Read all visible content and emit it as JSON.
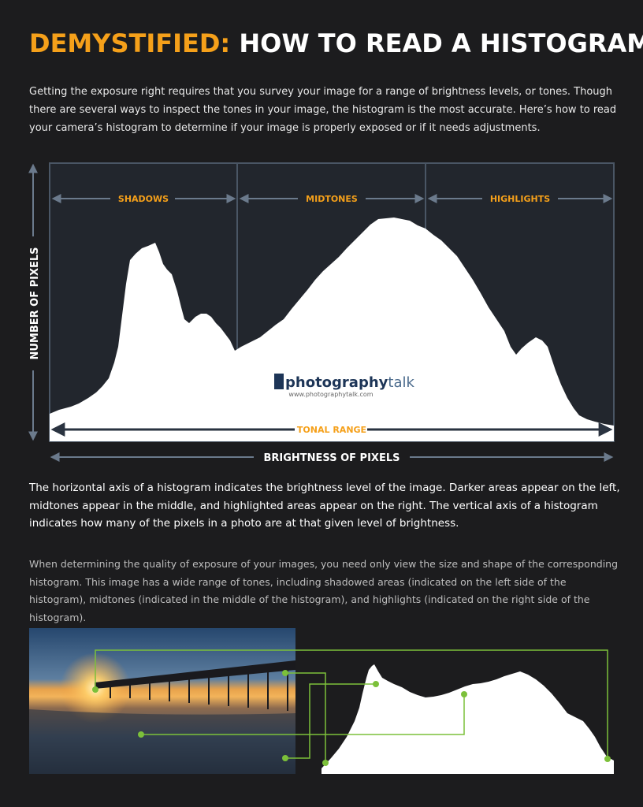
{
  "header": {
    "title_highlight": "DEMYSTIFIED:",
    "title": "HOW TO READ A HISTOGRAM"
  },
  "intro": "Getting the exposure right requires that you survey your image for a range of brightness levels, or tones. Though there are several ways to inspect the tones in your image, the histogram is the most accurate. Here’s how to read your camera’s histogram to determine if your image is properly exposed or if it needs adjustments.",
  "histogram": {
    "y_axis_label": "NUMBER OF PIXELS",
    "x_axis_label": "BRIGHTNESS OF PIXELS",
    "zones": [
      "SHADOWS",
      "MIDTONES",
      "HIGHLIGHTS"
    ],
    "range_label": "TONAL RANGE",
    "logo": {
      "name_bold": "photography",
      "name_light": "talk",
      "url": "www.photographytalk.com"
    }
  },
  "paragraphs": [
    "The horizontal axis of a histogram indicates the brightness level of the image. Darker areas appear on the left, midtones appear in the middle, and highlighted areas appear on the right. The vertical axis of a histogram indicates how many of the pixels in a photo are at that given level of brightness.",
    "When determining the quality of exposure of your images, you need only view the size and shape of the corresponding histogram. This image has a wide range of tones, including shadowed areas (indicated on the left side of the histogram), midtones (indicated in the middle of the histogram), and highlights (indicated on the right side of the histogram)."
  ]
}
